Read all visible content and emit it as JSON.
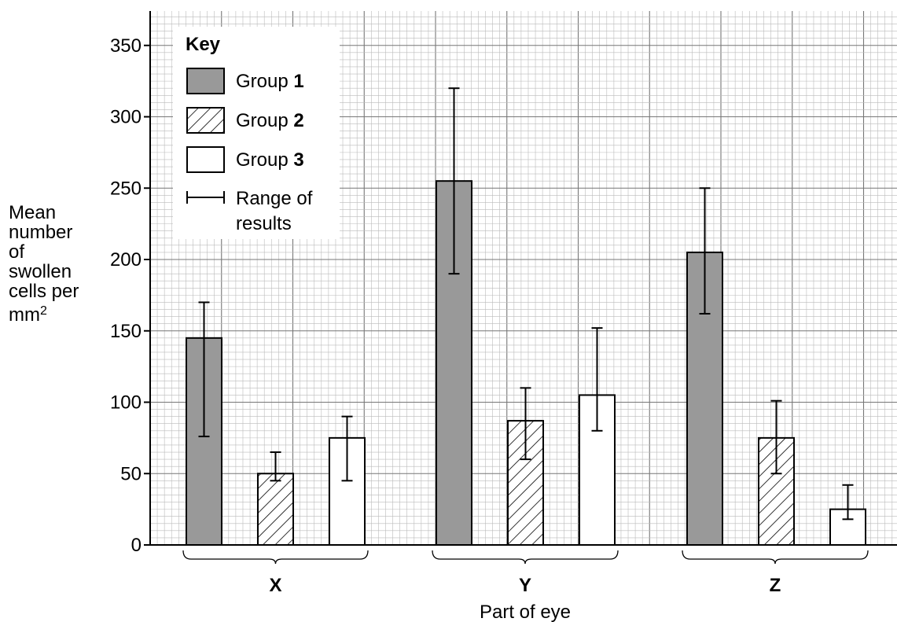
{
  "chart_data": {
    "type": "bar",
    "xlabel": "Part of eye",
    "ylabel_lines": [
      "Mean",
      "number",
      "of",
      "swollen",
      "cells per",
      "mm"
    ],
    "ylabel_sup": "2",
    "ylim": [
      0,
      370
    ],
    "yticks": [
      0,
      50,
      100,
      150,
      200,
      250,
      300,
      350
    ],
    "grid": true,
    "categories": [
      "X",
      "Y",
      "Z"
    ],
    "series": [
      {
        "name": "Group 1",
        "fill": "grey",
        "values": [
          145,
          255,
          205
        ],
        "range_low": [
          76,
          190,
          162
        ],
        "range_high": [
          170,
          320,
          250
        ]
      },
      {
        "name": "Group 2",
        "fill": "hatched",
        "values": [
          50,
          87,
          75
        ],
        "range_low": [
          45,
          60,
          50
        ],
        "range_high": [
          65,
          110,
          101
        ]
      },
      {
        "name": "Group 3",
        "fill": "white",
        "values": [
          75,
          105,
          25
        ],
        "range_low": [
          45,
          80,
          18
        ],
        "range_high": [
          90,
          152,
          42
        ]
      }
    ],
    "legend": {
      "title": "Key",
      "placement": "top-left",
      "items": [
        {
          "prefix": "Group ",
          "bold": "1",
          "swatch": "grey"
        },
        {
          "prefix": "Group ",
          "bold": "2",
          "swatch": "hatched"
        },
        {
          "prefix": "Group ",
          "bold": "3",
          "swatch": "white"
        },
        {
          "line1": "Range of",
          "line2": "results",
          "swatch": "range"
        }
      ]
    },
    "colors": {
      "grey": "#999999",
      "grid_minor": "#bbbbbb",
      "grid_major": "#777777"
    }
  }
}
